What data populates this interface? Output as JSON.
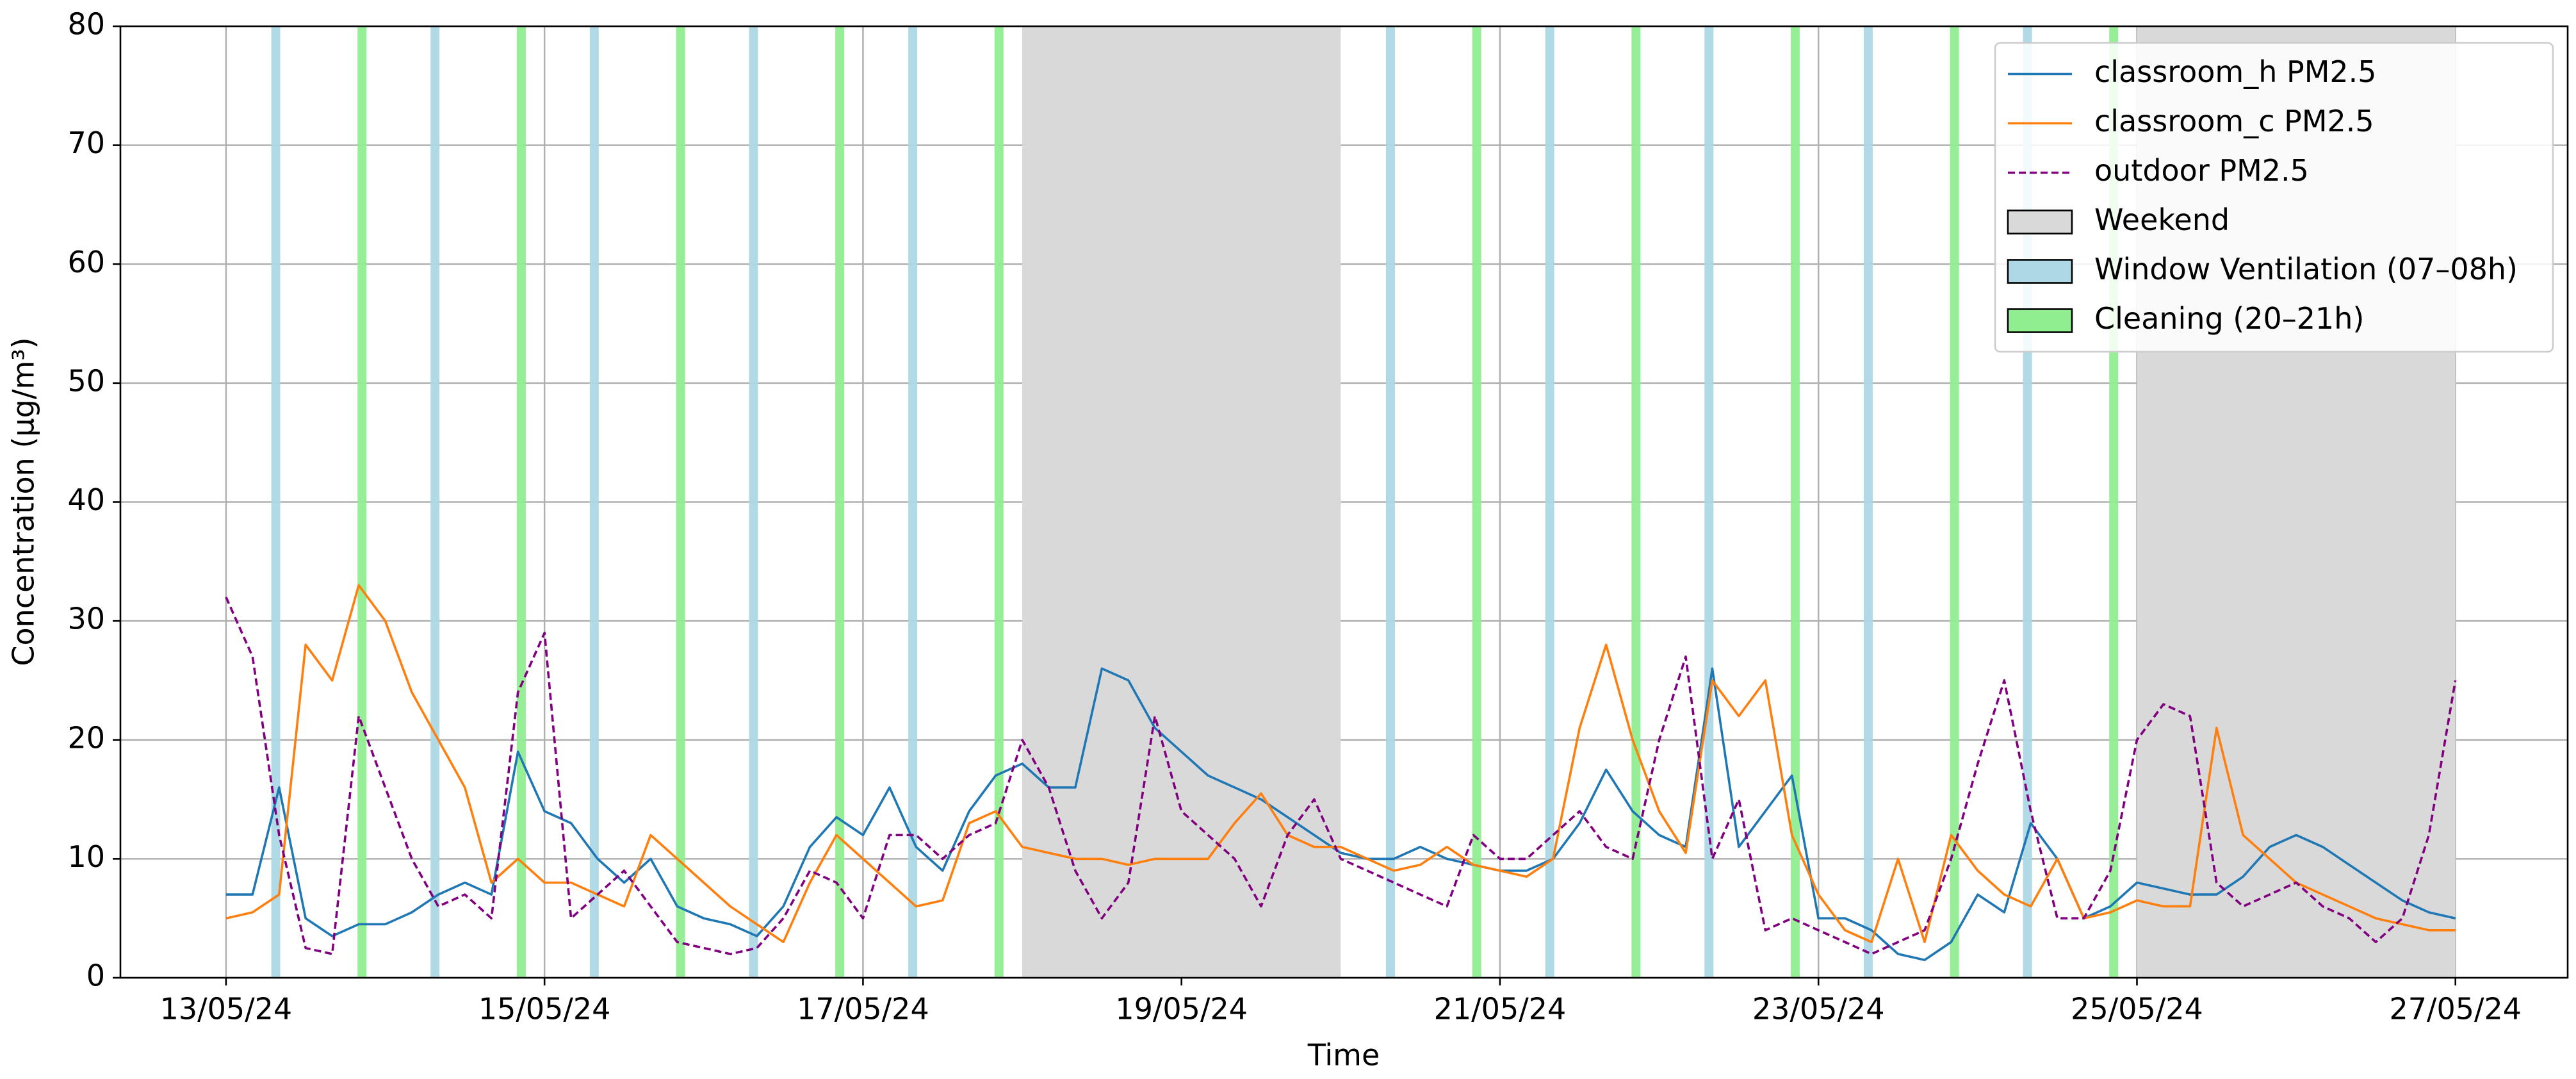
{
  "chart_data": {
    "type": "line",
    "xlabel": "Time",
    "ylabel": "Concentration (μg/m³)",
    "xlim": [
      "2024-05-12T08:05",
      "2024-05-27T16:55"
    ],
    "xticks": [
      {
        "value": "2024-05-13T00:00",
        "label": "13/05/24"
      },
      {
        "value": "2024-05-15T00:00",
        "label": "15/05/24"
      },
      {
        "value": "2024-05-17T00:00",
        "label": "17/05/24"
      },
      {
        "value": "2024-05-19T00:00",
        "label": "19/05/24"
      },
      {
        "value": "2024-05-21T00:00",
        "label": "21/05/24"
      },
      {
        "value": "2024-05-23T00:00",
        "label": "23/05/24"
      },
      {
        "value": "2024-05-25T00:00",
        "label": "25/05/24"
      },
      {
        "value": "2024-05-27T00:00",
        "label": "27/05/24"
      }
    ],
    "ylim": [
      0,
      80
    ],
    "yticks": [
      0,
      10,
      20,
      30,
      40,
      50,
      60,
      70,
      80
    ],
    "grid": true,
    "legend": "upper right",
    "x": [
      "2024-05-13T00:00",
      "2024-05-13T04:00",
      "2024-05-13T08:00",
      "2024-05-13T12:00",
      "2024-05-13T16:00",
      "2024-05-13T20:00",
      "2024-05-14T00:00",
      "2024-05-14T04:00",
      "2024-05-14T08:00",
      "2024-05-14T12:00",
      "2024-05-14T16:00",
      "2024-05-14T20:00",
      "2024-05-15T00:00",
      "2024-05-15T04:00",
      "2024-05-15T08:00",
      "2024-05-15T12:00",
      "2024-05-15T16:00",
      "2024-05-15T20:00",
      "2024-05-16T00:00",
      "2024-05-16T04:00",
      "2024-05-16T08:00",
      "2024-05-16T12:00",
      "2024-05-16T16:00",
      "2024-05-16T20:00",
      "2024-05-17T00:00",
      "2024-05-17T04:00",
      "2024-05-17T08:00",
      "2024-05-17T12:00",
      "2024-05-17T16:00",
      "2024-05-17T20:00",
      "2024-05-18T00:00",
      "2024-05-18T04:00",
      "2024-05-18T08:00",
      "2024-05-18T12:00",
      "2024-05-18T16:00",
      "2024-05-18T20:00",
      "2024-05-19T00:00",
      "2024-05-19T04:00",
      "2024-05-19T08:00",
      "2024-05-19T12:00",
      "2024-05-19T16:00",
      "2024-05-19T20:00",
      "2024-05-20T00:00",
      "2024-05-20T04:00",
      "2024-05-20T08:00",
      "2024-05-20T12:00",
      "2024-05-20T16:00",
      "2024-05-20T20:00",
      "2024-05-21T00:00",
      "2024-05-21T04:00",
      "2024-05-21T08:00",
      "2024-05-21T12:00",
      "2024-05-21T16:00",
      "2024-05-21T20:00",
      "2024-05-22T00:00",
      "2024-05-22T04:00",
      "2024-05-22T08:00",
      "2024-05-22T12:00",
      "2024-05-22T16:00",
      "2024-05-22T20:00",
      "2024-05-23T00:00",
      "2024-05-23T04:00",
      "2024-05-23T08:00",
      "2024-05-23T12:00",
      "2024-05-23T16:00",
      "2024-05-23T20:00",
      "2024-05-24T00:00",
      "2024-05-24T04:00",
      "2024-05-24T08:00",
      "2024-05-24T12:00",
      "2024-05-24T16:00",
      "2024-05-24T20:00",
      "2024-05-25T00:00",
      "2024-05-25T04:00",
      "2024-05-25T08:00",
      "2024-05-25T12:00",
      "2024-05-25T16:00",
      "2024-05-25T20:00",
      "2024-05-26T00:00",
      "2024-05-26T04:00",
      "2024-05-26T08:00",
      "2024-05-26T12:00",
      "2024-05-26T16:00",
      "2024-05-26T20:00",
      "2024-05-27T00:00"
    ],
    "series": [
      {
        "name": "classroom_h PM2.5",
        "color": "#1f77b4",
        "dashed": false,
        "values": [
          7,
          7,
          16,
          5,
          3.5,
          4.5,
          4.5,
          5.5,
          7,
          8,
          7,
          19,
          14,
          13,
          10,
          8,
          10,
          6,
          5,
          4.5,
          3.5,
          6,
          11,
          13.5,
          12,
          16,
          11,
          9,
          14,
          17,
          18,
          16,
          16,
          26,
          25,
          21,
          19,
          17,
          16,
          15,
          13.5,
          12,
          10.5,
          10,
          10,
          11,
          10,
          9.5,
          9,
          9,
          10,
          13,
          17.5,
          14,
          12,
          11,
          26,
          11,
          14,
          17,
          5,
          5,
          4,
          2,
          1.5,
          3,
          7,
          5.5,
          13,
          10,
          5,
          6,
          8,
          7.5,
          7,
          7,
          8.5,
          11,
          12,
          11,
          9.5,
          8,
          6.5,
          5.5,
          5
        ]
      },
      {
        "name": "classroom_c PM2.5",
        "color": "#ff7f0e",
        "dashed": false,
        "values": [
          5,
          5.5,
          7,
          28,
          25,
          33,
          30,
          24,
          20,
          16,
          8,
          10,
          8,
          8,
          7,
          6,
          12,
          10,
          8,
          6,
          4.5,
          3,
          8,
          12,
          10,
          8,
          6,
          6.5,
          13,
          14,
          11,
          10.5,
          10,
          10,
          9.5,
          10,
          10,
          10,
          13,
          15.5,
          12,
          11,
          11,
          10,
          9,
          9.5,
          11,
          9.5,
          9,
          8.5,
          10,
          21,
          28,
          20,
          14,
          10.5,
          25,
          22,
          25,
          12,
          7,
          4,
          3,
          10,
          3,
          12,
          9,
          7,
          6,
          10,
          5,
          5.5,
          6.5,
          6,
          6,
          21,
          12,
          10,
          8,
          7,
          6,
          5,
          4.5,
          4,
          4
        ]
      },
      {
        "name": "outdoor PM2.5",
        "color": "#800080",
        "dashed": true,
        "values": [
          32,
          27,
          12,
          2.5,
          2,
          22,
          16,
          10,
          6,
          7,
          5,
          24,
          29,
          5,
          7,
          9,
          6,
          3,
          2.5,
          2,
          2.5,
          5,
          9,
          8,
          5,
          12,
          12,
          10,
          12,
          13,
          20,
          16,
          9,
          5,
          8,
          22,
          14,
          12,
          10,
          6,
          12,
          15,
          10,
          9,
          8,
          7,
          6,
          12,
          10,
          10,
          12,
          14,
          11,
          10,
          20,
          27,
          10,
          15,
          4,
          5,
          4,
          3,
          2,
          3,
          4,
          10,
          18,
          25,
          14,
          5,
          5,
          9,
          20,
          23,
          22,
          8,
          6,
          7,
          8,
          6,
          5,
          3,
          5,
          12,
          25
        ]
      }
    ],
    "spans": [
      {
        "name": "Weekend",
        "color": "#d9d9d9",
        "ranges": [
          [
            "2024-05-18T00:00",
            "2024-05-20T00:00"
          ],
          [
            "2024-05-25T00:00",
            "2024-05-27T00:00"
          ]
        ]
      },
      {
        "name": "Window Ventilation (07–08h)",
        "color": "#add8e6",
        "ranges": [
          [
            "2024-05-13T07:00",
            "2024-05-13T08:00"
          ],
          [
            "2024-05-14T07:00",
            "2024-05-14T08:00"
          ],
          [
            "2024-05-15T07:00",
            "2024-05-15T08:00"
          ],
          [
            "2024-05-16T07:00",
            "2024-05-16T08:00"
          ],
          [
            "2024-05-17T07:00",
            "2024-05-17T08:00"
          ],
          [
            "2024-05-20T07:00",
            "2024-05-20T08:00"
          ],
          [
            "2024-05-21T07:00",
            "2024-05-21T08:00"
          ],
          [
            "2024-05-22T07:00",
            "2024-05-22T08:00"
          ],
          [
            "2024-05-23T07:00",
            "2024-05-23T08:00"
          ],
          [
            "2024-05-24T07:00",
            "2024-05-24T08:00"
          ]
        ]
      },
      {
        "name": "Cleaning (20–21h)",
        "color": "#90ee90",
        "ranges": [
          [
            "2024-05-13T20:00",
            "2024-05-13T21:00"
          ],
          [
            "2024-05-14T20:00",
            "2024-05-14T21:00"
          ],
          [
            "2024-05-15T20:00",
            "2024-05-15T21:00"
          ],
          [
            "2024-05-16T20:00",
            "2024-05-16T21:00"
          ],
          [
            "2024-05-17T20:00",
            "2024-05-17T21:00"
          ],
          [
            "2024-05-20T20:00",
            "2024-05-20T21:00"
          ],
          [
            "2024-05-21T20:00",
            "2024-05-21T21:00"
          ],
          [
            "2024-05-22T20:00",
            "2024-05-22T21:00"
          ],
          [
            "2024-05-23T20:00",
            "2024-05-23T21:00"
          ],
          [
            "2024-05-24T20:00",
            "2024-05-24T21:00"
          ]
        ]
      }
    ]
  }
}
